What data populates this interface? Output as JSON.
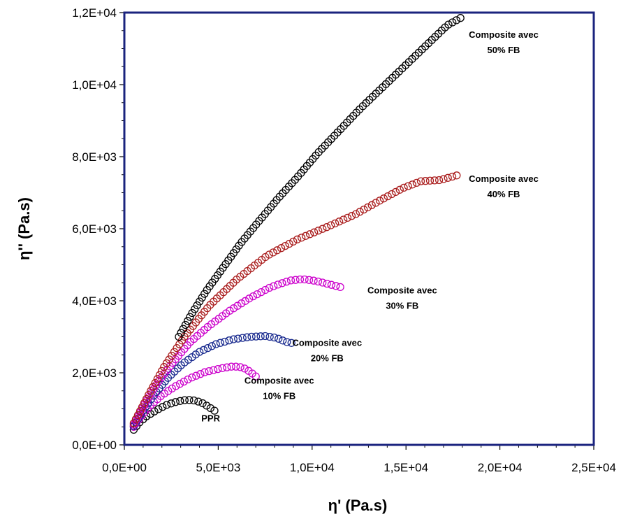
{
  "chart_data": {
    "type": "scatter",
    "xlabel": "η' (Pa.s)",
    "ylabel": "η'' (Pa.s)",
    "xlim": [
      0,
      25000
    ],
    "ylim": [
      0,
      12000
    ],
    "x_ticks": [
      "0,0E+00",
      "5,0E+03",
      "1,0E+04",
      "1,5E+04",
      "2,0E+04",
      "2,5E+04"
    ],
    "y_ticks": [
      "0,0E+00",
      "2,0E+03",
      "4,0E+03",
      "6,0E+03",
      "8,0E+03",
      "1,0E+04",
      "1,2E+04"
    ],
    "grid": false,
    "marker": "open-circle",
    "series": [
      {
        "name": "PPR",
        "color": "#000000",
        "annotation": [
          "PPR"
        ],
        "annotation_at": [
          4600,
          650
        ],
        "points": [
          [
            500,
            420
          ],
          [
            800,
            620
          ],
          [
            1200,
            800
          ],
          [
            1700,
            960
          ],
          [
            2200,
            1100
          ],
          [
            2800,
            1200
          ],
          [
            3300,
            1250
          ],
          [
            3800,
            1230
          ],
          [
            4200,
            1150
          ],
          [
            4500,
            1050
          ],
          [
            4800,
            950
          ]
        ]
      },
      {
        "name": "Composite avec 10% FB",
        "color": "#cc00cc",
        "annotation": [
          "Composite avec",
          "10% FB"
        ],
        "annotation_at": [
          8250,
          1700
        ],
        "points": [
          [
            500,
            500
          ],
          [
            900,
            800
          ],
          [
            1400,
            1100
          ],
          [
            2000,
            1380
          ],
          [
            2700,
            1620
          ],
          [
            3500,
            1850
          ],
          [
            4300,
            2020
          ],
          [
            5100,
            2120
          ],
          [
            5800,
            2180
          ],
          [
            6300,
            2150
          ],
          [
            6700,
            2030
          ],
          [
            7000,
            1900
          ]
        ]
      },
      {
        "name": "Composite avec 20% FB",
        "color": "#1a2b8f",
        "annotation": [
          "Composite avec",
          "20% FB"
        ],
        "annotation_at": [
          10800,
          2750
        ],
        "points": [
          [
            500,
            520
          ],
          [
            1000,
            950
          ],
          [
            1600,
            1400
          ],
          [
            2300,
            1850
          ],
          [
            3100,
            2250
          ],
          [
            4000,
            2580
          ],
          [
            4900,
            2800
          ],
          [
            5800,
            2930
          ],
          [
            6700,
            3000
          ],
          [
            7500,
            3020
          ],
          [
            8100,
            2970
          ],
          [
            8600,
            2860
          ],
          [
            8900,
            2830
          ]
        ]
      },
      {
        "name": "Composite avec 30% FB",
        "color": "#cc00cc",
        "annotation": [
          "Composite avec",
          "30% FB"
        ],
        "annotation_at": [
          14800,
          4200
        ],
        "points": [
          [
            500,
            560
          ],
          [
            1100,
            1150
          ],
          [
            1800,
            1750
          ],
          [
            2600,
            2300
          ],
          [
            3500,
            2850
          ],
          [
            4500,
            3300
          ],
          [
            5600,
            3720
          ],
          [
            6700,
            4080
          ],
          [
            7800,
            4380
          ],
          [
            8800,
            4560
          ],
          [
            9500,
            4600
          ],
          [
            10200,
            4550
          ],
          [
            10900,
            4460
          ],
          [
            11500,
            4380
          ]
        ]
      },
      {
        "name": "Composite avec 40% FB",
        "color": "#aa1e1e",
        "annotation": [
          "Composite avec",
          "40% FB"
        ],
        "annotation_at": [
          20200,
          7300
        ],
        "points": [
          [
            500,
            600
          ],
          [
            1200,
            1300
          ],
          [
            2100,
            2150
          ],
          [
            3200,
            3000
          ],
          [
            4500,
            3850
          ],
          [
            6000,
            4600
          ],
          [
            7600,
            5250
          ],
          [
            9200,
            5700
          ],
          [
            10800,
            6050
          ],
          [
            12300,
            6400
          ],
          [
            13600,
            6780
          ],
          [
            14800,
            7120
          ],
          [
            15800,
            7320
          ],
          [
            16800,
            7350
          ],
          [
            17700,
            7480
          ]
        ]
      },
      {
        "name": "Composite avec 50% FB",
        "color": "#000000",
        "annotation": [
          "Composite avec",
          "50% FB"
        ],
        "annotation_at": [
          20200,
          11300
        ],
        "points": [
          [
            2900,
            3000
          ],
          [
            3600,
            3650
          ],
          [
            4400,
            4300
          ],
          [
            5300,
            4950
          ],
          [
            6200,
            5600
          ],
          [
            7200,
            6230
          ],
          [
            8200,
            6850
          ],
          [
            9300,
            7480
          ],
          [
            10300,
            8100
          ],
          [
            11400,
            8700
          ],
          [
            12500,
            9300
          ],
          [
            13700,
            9900
          ],
          [
            14900,
            10500
          ],
          [
            16100,
            11100
          ],
          [
            17200,
            11650
          ],
          [
            17900,
            11850
          ]
        ]
      }
    ]
  }
}
